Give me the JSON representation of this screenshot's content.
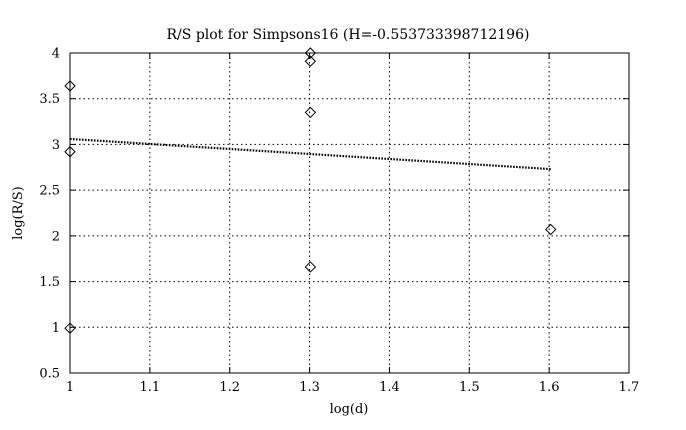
{
  "chart_data": {
    "type": "scatter",
    "title": "R/S plot for Simpsons16 (H=-0.553733398712196)",
    "xlabel": "log(d)",
    "ylabel": "log(R/S)",
    "xlim": [
      1,
      1.7
    ],
    "ylim": [
      0.5,
      4
    ],
    "x_ticks": [
      "1",
      "1.1",
      "1.2",
      "1.3",
      "1.4",
      "1.5",
      "1.6",
      "1.7"
    ],
    "y_ticks": [
      "0.5",
      "1",
      "1.5",
      "2",
      "2.5",
      "3",
      "3.5",
      "4"
    ],
    "grid": true,
    "points": [
      {
        "x": 1.0,
        "y": 3.64
      },
      {
        "x": 1.0,
        "y": 2.92
      },
      {
        "x": 1.0,
        "y": 0.99
      },
      {
        "x": 1.301,
        "y": 4.0
      },
      {
        "x": 1.301,
        "y": 3.91
      },
      {
        "x": 1.301,
        "y": 3.35
      },
      {
        "x": 1.301,
        "y": 1.66
      },
      {
        "x": 1.602,
        "y": 2.07
      }
    ],
    "fit_line": {
      "x": [
        1.0,
        1.602
      ],
      "y": [
        3.06,
        2.73
      ]
    }
  }
}
